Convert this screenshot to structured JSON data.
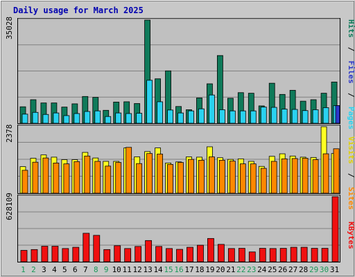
{
  "chart_data": {
    "type": "bar",
    "title": "Daily usage for March 2025",
    "categories": [
      "1",
      "2",
      "3",
      "4",
      "5",
      "6",
      "7",
      "8",
      "9",
      "10",
      "11",
      "12",
      "13",
      "14",
      "15",
      "16",
      "17",
      "18",
      "19",
      "20",
      "21",
      "22",
      "23",
      "24",
      "25",
      "26",
      "27",
      "28",
      "29",
      "30",
      "31"
    ],
    "weekend_days": [
      "1",
      "2",
      "8",
      "9",
      "15",
      "16",
      "22",
      "23",
      "29",
      "30"
    ],
    "panels": [
      {
        "name": "hits-files-pages",
        "ymax_label": "35028",
        "ymax": 35028,
        "side_label": {
          "pages": "Pages",
          "sep1": " / ",
          "files": "Files",
          "sep2": " / ",
          "hits": "Hits"
        },
        "series": [
          {
            "name": "Hits",
            "values": [
              5600,
              8000,
              6900,
              6900,
              5500,
              6600,
              9100,
              8800,
              4400,
              7200,
              7300,
              6700,
              35028,
              15100,
              17800,
              5700,
              4600,
              8600,
              13400,
              23000,
              8500,
              10400,
              10200,
              5900,
              13600,
              9800,
              11200,
              7500,
              8000,
              10200,
              14000
            ]
          },
          {
            "name": "Files",
            "values": [
              3100,
              3700,
              3000,
              3500,
              2600,
              3300,
              4000,
              4200,
              2300,
              3500,
              3300,
              3400,
              14600,
              7300,
              4500,
              3500,
              4200,
              4900,
              9600,
              4600,
              4200,
              4200,
              4200,
              5500,
              5400,
              4800,
              4700,
              4300,
              4600,
              5300,
              6000
            ]
          },
          {
            "name": "Pages",
            "values": [
              0,
              0,
              0,
              0,
              0,
              0,
              0,
              0,
              0,
              0,
              0,
              0,
              0,
              0,
              0,
              0,
              0,
              0,
              0,
              0,
              0,
              0,
              0,
              0,
              0,
              0,
              0,
              0,
              0,
              0,
              6000
            ]
          }
        ],
        "colors": {
          "hits": "#0f7a5a",
          "files": "#2ad2f0",
          "pages": "#2c36c9"
        }
      },
      {
        "name": "visits-sites",
        "ymax_label": "2378",
        "ymax": 2378,
        "side_label": {
          "sites": "Sites",
          "sep": " / ",
          "visits": "Visits"
        },
        "series": [
          {
            "name": "Visits",
            "values": [
              950,
              1250,
              1370,
              1290,
              1200,
              1200,
              1460,
              1260,
              1140,
              1140,
              1620,
              1300,
              1490,
              1620,
              1080,
              1120,
              1300,
              1290,
              1660,
              1270,
              1210,
              1230,
              1140,
              960,
              1320,
              1410,
              1330,
              1290,
              1280,
              2378,
              1420
            ]
          },
          {
            "name": "Sites",
            "values": [
              820,
              1110,
              1260,
              1080,
              1050,
              1130,
              1330,
              1140,
              970,
              1100,
              1640,
              1060,
              1420,
              1400,
              1030,
              1100,
              1210,
              1180,
              1300,
              1180,
              1150,
              1050,
              1050,
              890,
              1140,
              1230,
              1240,
              1250,
              1200,
              1410,
              1590
            ]
          }
        ],
        "colors": {
          "visits": "#ffff22",
          "sites": "#ff8800"
        }
      },
      {
        "name": "kbytes",
        "ymax_label": "628109",
        "ymax": 628109,
        "side_label": {
          "kbytes": "KBytes"
        },
        "series": [
          {
            "name": "KBytes",
            "values": [
              110000,
              118000,
              150000,
              150000,
              128000,
              140000,
              275000,
              255000,
              118000,
              155000,
              128000,
              148000,
              205000,
              148000,
              128000,
              120000,
              140000,
              160000,
              225000,
              168000,
              128000,
              130000,
              95000,
              130000,
              128000,
              130000,
              140000,
              140000,
              130000,
              130000,
              628109
            ]
          }
        ],
        "colors": {
          "kbytes": "#f01010"
        }
      }
    ]
  }
}
